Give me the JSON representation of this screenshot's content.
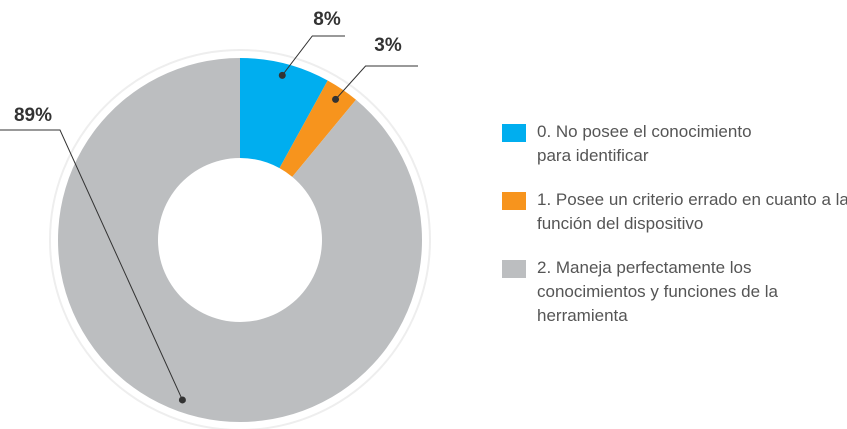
{
  "chart_data": {
    "type": "donut",
    "series": [
      {
        "name": "0. No posee el conocimiento para identificar",
        "color": "#00aeef"
      },
      {
        "name": "1. Posee un criterio errado en cuanto a la función del dispositivo",
        "color": "#f7941d"
      },
      {
        "name": "2. Maneja perfectamente los conocimientos y funciones de la herramienta",
        "color": "#bcbec0"
      }
    ],
    "values": [
      8,
      3,
      89
    ],
    "value_labels": [
      "8%",
      "3%",
      "89%"
    ]
  }
}
